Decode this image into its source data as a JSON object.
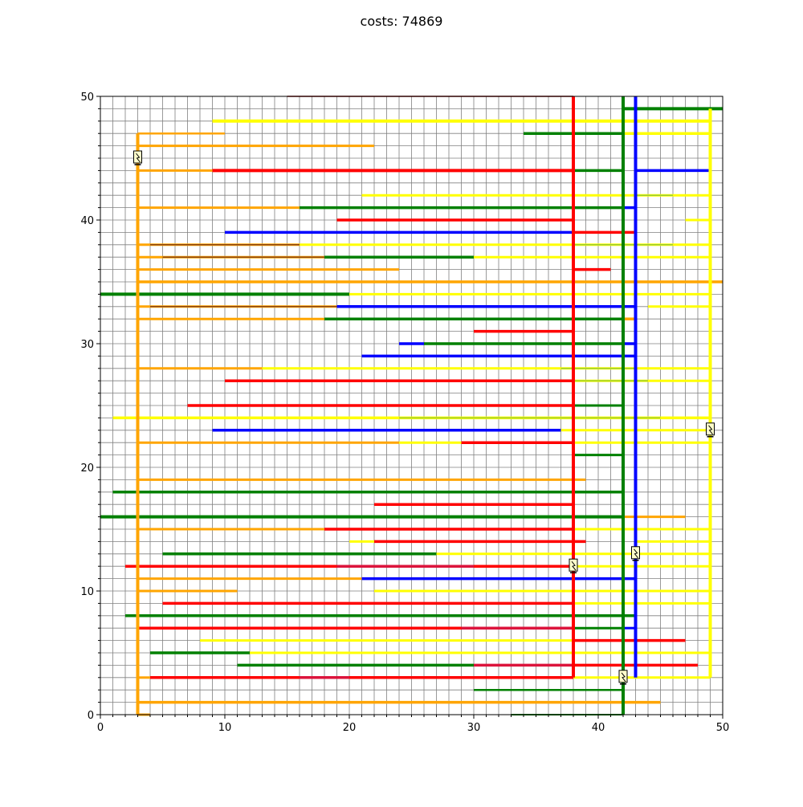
{
  "title": "costs: 74869",
  "chart_data": {
    "type": "line",
    "title": "costs: 74869",
    "xlabel": "",
    "ylabel": "",
    "xlim": [
      0,
      50
    ],
    "ylim": [
      0,
      50
    ],
    "x_ticks": [
      "0",
      "10",
      "20",
      "30",
      "40",
      "50"
    ],
    "y_ticks": [
      "0",
      "10",
      "20",
      "30",
      "40",
      "50"
    ],
    "grid": "on, minor step 1",
    "colors": {
      "orange": "#ffa500",
      "red": "#ff0000",
      "green": "#008000",
      "blue": "#0000ff",
      "yellow": "#ffff00",
      "brown": "#8b4513",
      "darkred": "#8b0000",
      "crimson": "#dc143c",
      "olive": "#9acd32"
    },
    "trunks": [
      {
        "color": "orange",
        "x": 3,
        "y0": 0,
        "y1": 47
      },
      {
        "color": "red",
        "x": 38,
        "y0": 3,
        "y1": 50
      },
      {
        "color": "green",
        "x": 42,
        "y0": 0,
        "y1": 50
      },
      {
        "color": "blue",
        "x": 43,
        "y0": 3,
        "y1": 50
      },
      {
        "color": "yellow",
        "x": 49,
        "y0": 3,
        "y1": 49
      }
    ],
    "segments": [
      {
        "color": "darkred",
        "y": 50,
        "x0": 15,
        "x1": 38,
        "w": 1.5
      },
      {
        "color": "green",
        "y": 49,
        "x0": 42,
        "x1": 50,
        "w": 4
      },
      {
        "color": "yellow",
        "y": 48,
        "x0": 9,
        "x1": 49,
        "w": 4
      },
      {
        "color": "orange",
        "y": 47,
        "x0": 3,
        "x1": 10,
        "w": 2.5
      },
      {
        "color": "green",
        "y": 47,
        "x0": 34,
        "x1": 42,
        "w": 3.5
      },
      {
        "color": "yellow",
        "y": 47,
        "x0": 42,
        "x1": 49,
        "w": 3.5
      },
      {
        "color": "orange",
        "y": 46,
        "x0": 3,
        "x1": 22,
        "w": 3
      },
      {
        "color": "orange",
        "y": 44,
        "x0": 3,
        "x1": 9,
        "w": 3
      },
      {
        "color": "red",
        "y": 44,
        "x0": 9,
        "x1": 38,
        "w": 4
      },
      {
        "color": "green",
        "y": 44,
        "x0": 38,
        "x1": 42,
        "w": 3.5
      },
      {
        "color": "blue",
        "y": 44,
        "x0": 43,
        "x1": 49,
        "w": 3.5
      },
      {
        "color": "yellow",
        "y": 42,
        "x0": 21,
        "x1": 49,
        "w": 3
      },
      {
        "color": "olive",
        "y": 42,
        "x0": 43,
        "x1": 46,
        "w": 1.5
      },
      {
        "color": "orange",
        "y": 41,
        "x0": 3,
        "x1": 16,
        "w": 3
      },
      {
        "color": "green",
        "y": 41,
        "x0": 16,
        "x1": 42,
        "w": 3.5
      },
      {
        "color": "blue",
        "y": 41,
        "x0": 42,
        "x1": 43,
        "w": 3.5
      },
      {
        "color": "red",
        "y": 40,
        "x0": 19,
        "x1": 38,
        "w": 3.5
      },
      {
        "color": "yellow",
        "y": 40,
        "x0": 47,
        "x1": 49,
        "w": 3
      },
      {
        "color": "blue",
        "y": 39,
        "x0": 10,
        "x1": 38,
        "w": 3.5
      },
      {
        "color": "red",
        "y": 39,
        "x0": 38,
        "x1": 43,
        "w": 3.5
      },
      {
        "color": "orange",
        "y": 38,
        "x0": 3,
        "x1": 16,
        "w": 3
      },
      {
        "color": "brown",
        "y": 38,
        "x0": 4,
        "x1": 16,
        "w": 1.5
      },
      {
        "color": "yellow",
        "y": 38,
        "x0": 16,
        "x1": 49,
        "w": 3
      },
      {
        "color": "olive",
        "y": 38,
        "x0": 38,
        "x1": 46,
        "w": 1.5
      },
      {
        "color": "orange",
        "y": 37,
        "x0": 3,
        "x1": 18,
        "w": 3
      },
      {
        "color": "brown",
        "y": 37,
        "x0": 5,
        "x1": 18,
        "w": 1.5
      },
      {
        "color": "green",
        "y": 37,
        "x0": 18,
        "x1": 30,
        "w": 3.5
      },
      {
        "color": "yellow",
        "y": 37,
        "x0": 30,
        "x1": 49,
        "w": 3
      },
      {
        "color": "orange",
        "y": 36,
        "x0": 3,
        "x1": 24,
        "w": 3
      },
      {
        "color": "red",
        "y": 36,
        "x0": 38,
        "x1": 41,
        "w": 3.5
      },
      {
        "color": "orange",
        "y": 35,
        "x0": 3,
        "x1": 50,
        "w": 3.5
      },
      {
        "color": "green",
        "y": 34,
        "x0": 0,
        "x1": 20,
        "w": 4
      },
      {
        "color": "yellow",
        "y": 34,
        "x0": 20,
        "x1": 49,
        "w": 3
      },
      {
        "color": "orange",
        "y": 33,
        "x0": 3,
        "x1": 19,
        "w": 3
      },
      {
        "color": "brown",
        "y": 33,
        "x0": 4,
        "x1": 19,
        "w": 1.5
      },
      {
        "color": "blue",
        "y": 33,
        "x0": 19,
        "x1": 43,
        "w": 3.5
      },
      {
        "color": "yellow",
        "y": 33,
        "x0": 44,
        "x1": 49,
        "w": 3
      },
      {
        "color": "orange",
        "y": 32,
        "x0": 3,
        "x1": 18,
        "w": 3
      },
      {
        "color": "green",
        "y": 32,
        "x0": 18,
        "x1": 42,
        "w": 3.5
      },
      {
        "color": "orange",
        "y": 32,
        "x0": 42,
        "x1": 43,
        "w": 3.5
      },
      {
        "color": "red",
        "y": 31,
        "x0": 30,
        "x1": 38,
        "w": 3.5
      },
      {
        "color": "blue",
        "y": 30,
        "x0": 24,
        "x1": 26,
        "w": 3.5
      },
      {
        "color": "green",
        "y": 30,
        "x0": 26,
        "x1": 42,
        "w": 3.5
      },
      {
        "color": "blue",
        "y": 30,
        "x0": 42,
        "x1": 43,
        "w": 3.5
      },
      {
        "color": "blue",
        "y": 29,
        "x0": 21,
        "x1": 43,
        "w": 3.5
      },
      {
        "color": "orange",
        "y": 28,
        "x0": 3,
        "x1": 13,
        "w": 3
      },
      {
        "color": "yellow",
        "y": 28,
        "x0": 13,
        "x1": 49,
        "w": 3
      },
      {
        "color": "olive",
        "y": 28,
        "x0": 37,
        "x1": 43,
        "w": 1.5
      },
      {
        "color": "red",
        "y": 27,
        "x0": 10,
        "x1": 38,
        "w": 3.5
      },
      {
        "color": "yellow",
        "y": 27,
        "x0": 38,
        "x1": 49,
        "w": 3
      },
      {
        "color": "olive",
        "y": 27,
        "x0": 38,
        "x1": 44,
        "w": 1.5
      },
      {
        "color": "red",
        "y": 25,
        "x0": 7,
        "x1": 38,
        "w": 3.5
      },
      {
        "color": "green",
        "y": 25,
        "x0": 38,
        "x1": 42,
        "w": 3
      },
      {
        "color": "yellow",
        "y": 24,
        "x0": 1,
        "x1": 49,
        "w": 3.5
      },
      {
        "color": "olive",
        "y": 24,
        "x0": 24,
        "x1": 45,
        "w": 1.5
      },
      {
        "color": "blue",
        "y": 23,
        "x0": 9,
        "x1": 37,
        "w": 3.5
      },
      {
        "color": "yellow",
        "y": 23,
        "x0": 37,
        "x1": 49,
        "w": 3
      },
      {
        "color": "orange",
        "y": 22,
        "x0": 3,
        "x1": 24,
        "w": 3
      },
      {
        "color": "yellow",
        "y": 22,
        "x0": 24,
        "x1": 29,
        "w": 3
      },
      {
        "color": "red",
        "y": 22,
        "x0": 29,
        "x1": 38,
        "w": 3.5
      },
      {
        "color": "yellow",
        "y": 22,
        "x0": 38,
        "x1": 49,
        "w": 3
      },
      {
        "color": "green",
        "y": 21,
        "x0": 38,
        "x1": 42,
        "w": 3
      },
      {
        "color": "orange",
        "y": 19,
        "x0": 3,
        "x1": 39,
        "w": 3
      },
      {
        "color": "green",
        "y": 18,
        "x0": 1,
        "x1": 42,
        "w": 3.5
      },
      {
        "color": "red",
        "y": 17,
        "x0": 22,
        "x1": 38,
        "w": 3.5
      },
      {
        "color": "green",
        "y": 16,
        "x0": 0,
        "x1": 42,
        "w": 4
      },
      {
        "color": "orange",
        "y": 16,
        "x0": 42,
        "x1": 47,
        "w": 3
      },
      {
        "color": "orange",
        "y": 15,
        "x0": 3,
        "x1": 18,
        "w": 3
      },
      {
        "color": "red",
        "y": 15,
        "x0": 18,
        "x1": 38,
        "w": 3.5
      },
      {
        "color": "yellow",
        "y": 15,
        "x0": 38,
        "x1": 49,
        "w": 3
      },
      {
        "color": "yellow",
        "y": 14,
        "x0": 20,
        "x1": 22,
        "w": 3
      },
      {
        "color": "red",
        "y": 14,
        "x0": 22,
        "x1": 39,
        "w": 3.5
      },
      {
        "color": "yellow",
        "y": 14,
        "x0": 43,
        "x1": 49,
        "w": 3
      },
      {
        "color": "green",
        "y": 13,
        "x0": 5,
        "x1": 27,
        "w": 3.5
      },
      {
        "color": "yellow",
        "y": 13,
        "x0": 27,
        "x1": 49,
        "w": 3
      },
      {
        "color": "red",
        "y": 12,
        "x0": 2,
        "x1": 38,
        "w": 3.5
      },
      {
        "color": "crimson",
        "y": 12,
        "x0": 19,
        "x1": 30,
        "w": 3.5
      },
      {
        "color": "yellow",
        "y": 12,
        "x0": 38,
        "x1": 49,
        "w": 3
      },
      {
        "color": "orange",
        "y": 11,
        "x0": 3,
        "x1": 21,
        "w": 3
      },
      {
        "color": "blue",
        "y": 11,
        "x0": 21,
        "x1": 43,
        "w": 3.5
      },
      {
        "color": "orange",
        "y": 10,
        "x0": 3,
        "x1": 11,
        "w": 3
      },
      {
        "color": "yellow",
        "y": 10,
        "x0": 22,
        "x1": 49,
        "w": 3
      },
      {
        "color": "red",
        "y": 9,
        "x0": 5,
        "x1": 38,
        "w": 3.5
      },
      {
        "color": "yellow",
        "y": 9,
        "x0": 38,
        "x1": 49,
        "w": 3
      },
      {
        "color": "green",
        "y": 8,
        "x0": 2,
        "x1": 43,
        "w": 3.5
      },
      {
        "color": "red",
        "y": 7,
        "x0": 3,
        "x1": 38,
        "w": 3.5
      },
      {
        "color": "crimson",
        "y": 7,
        "x0": 29,
        "x1": 38,
        "w": 3.5
      },
      {
        "color": "green",
        "y": 7,
        "x0": 38,
        "x1": 42,
        "w": 3
      },
      {
        "color": "blue",
        "y": 7,
        "x0": 42,
        "x1": 43,
        "w": 3
      },
      {
        "color": "yellow",
        "y": 6,
        "x0": 8,
        "x1": 38,
        "w": 3
      },
      {
        "color": "red",
        "y": 6,
        "x0": 38,
        "x1": 47,
        "w": 3.5
      },
      {
        "color": "green",
        "y": 5,
        "x0": 4,
        "x1": 12,
        "w": 3.5
      },
      {
        "color": "yellow",
        "y": 5,
        "x0": 12,
        "x1": 49,
        "w": 3
      },
      {
        "color": "green",
        "y": 4,
        "x0": 11,
        "x1": 30,
        "w": 3.5
      },
      {
        "color": "crimson",
        "y": 4,
        "x0": 30,
        "x1": 38,
        "w": 3.5
      },
      {
        "color": "red",
        "y": 4,
        "x0": 38,
        "x1": 48,
        "w": 3.5
      },
      {
        "color": "orange",
        "y": 3,
        "x0": 3,
        "x1": 4,
        "w": 3
      },
      {
        "color": "red",
        "y": 3,
        "x0": 4,
        "x1": 38,
        "w": 3.5
      },
      {
        "color": "crimson",
        "y": 3,
        "x0": 16,
        "x1": 20,
        "w": 3.5
      },
      {
        "color": "yellow",
        "y": 3,
        "x0": 38,
        "x1": 49,
        "w": 3
      },
      {
        "color": "green",
        "y": 2,
        "x0": 30,
        "x1": 42,
        "w": 2.5
      },
      {
        "color": "orange",
        "y": 1,
        "x0": 3,
        "x1": 45,
        "w": 3.5
      },
      {
        "color": "orange",
        "y": 0,
        "x0": 3,
        "x1": 4,
        "w": 3
      },
      {
        "color": "green",
        "y": 0,
        "x0": 33,
        "x1": 42,
        "w": 2
      }
    ],
    "markers": [
      {
        "x": 3,
        "y": 45,
        "icon": "plug-icon"
      },
      {
        "x": 49,
        "y": 23,
        "icon": "plug-icon"
      },
      {
        "x": 43,
        "y": 13,
        "icon": "plug-icon"
      },
      {
        "x": 38,
        "y": 12,
        "icon": "plug-icon"
      },
      {
        "x": 42,
        "y": 3,
        "icon": "plug-icon"
      }
    ]
  }
}
